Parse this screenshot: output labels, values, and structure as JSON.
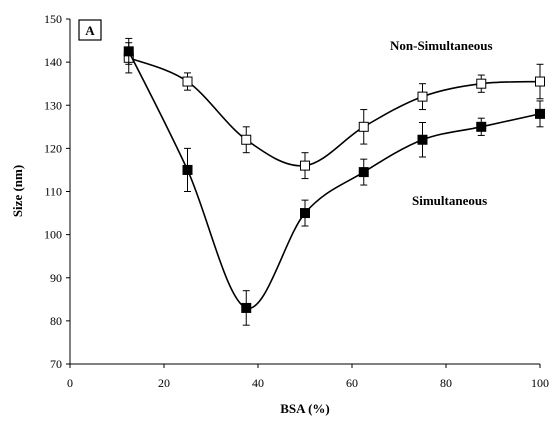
{
  "chart_data": {
    "type": "scatter",
    "panel_label": "A",
    "xlabel": "BSA (%)",
    "ylabel": "Size (nm)",
    "xlim": [
      0,
      100
    ],
    "ylim": [
      70,
      150
    ],
    "x_ticks": [
      0,
      20,
      40,
      60,
      80,
      100
    ],
    "y_ticks": [
      70,
      80,
      90,
      100,
      110,
      120,
      130,
      140,
      150
    ],
    "grid": false,
    "series": [
      {
        "name": "Non-Simultaneous",
        "marker": "open-square",
        "color": "#000000",
        "x": [
          12.5,
          25,
          37.5,
          50,
          62.5,
          75,
          87.5,
          100
        ],
        "y": [
          141,
          135.5,
          122,
          116,
          125,
          132,
          135,
          135.5
        ],
        "err": [
          3.5,
          2,
          3,
          3,
          4,
          3,
          2,
          4
        ]
      },
      {
        "name": "Simultaneous",
        "marker": "filled-square",
        "color": "#000000",
        "x": [
          12.5,
          25,
          37.5,
          50,
          62.5,
          75,
          87.5,
          100
        ],
        "y": [
          142.5,
          115,
          83,
          105,
          114.5,
          122,
          125,
          128
        ],
        "err": [
          3,
          5,
          4,
          3,
          3,
          4,
          2,
          3
        ]
      }
    ]
  }
}
